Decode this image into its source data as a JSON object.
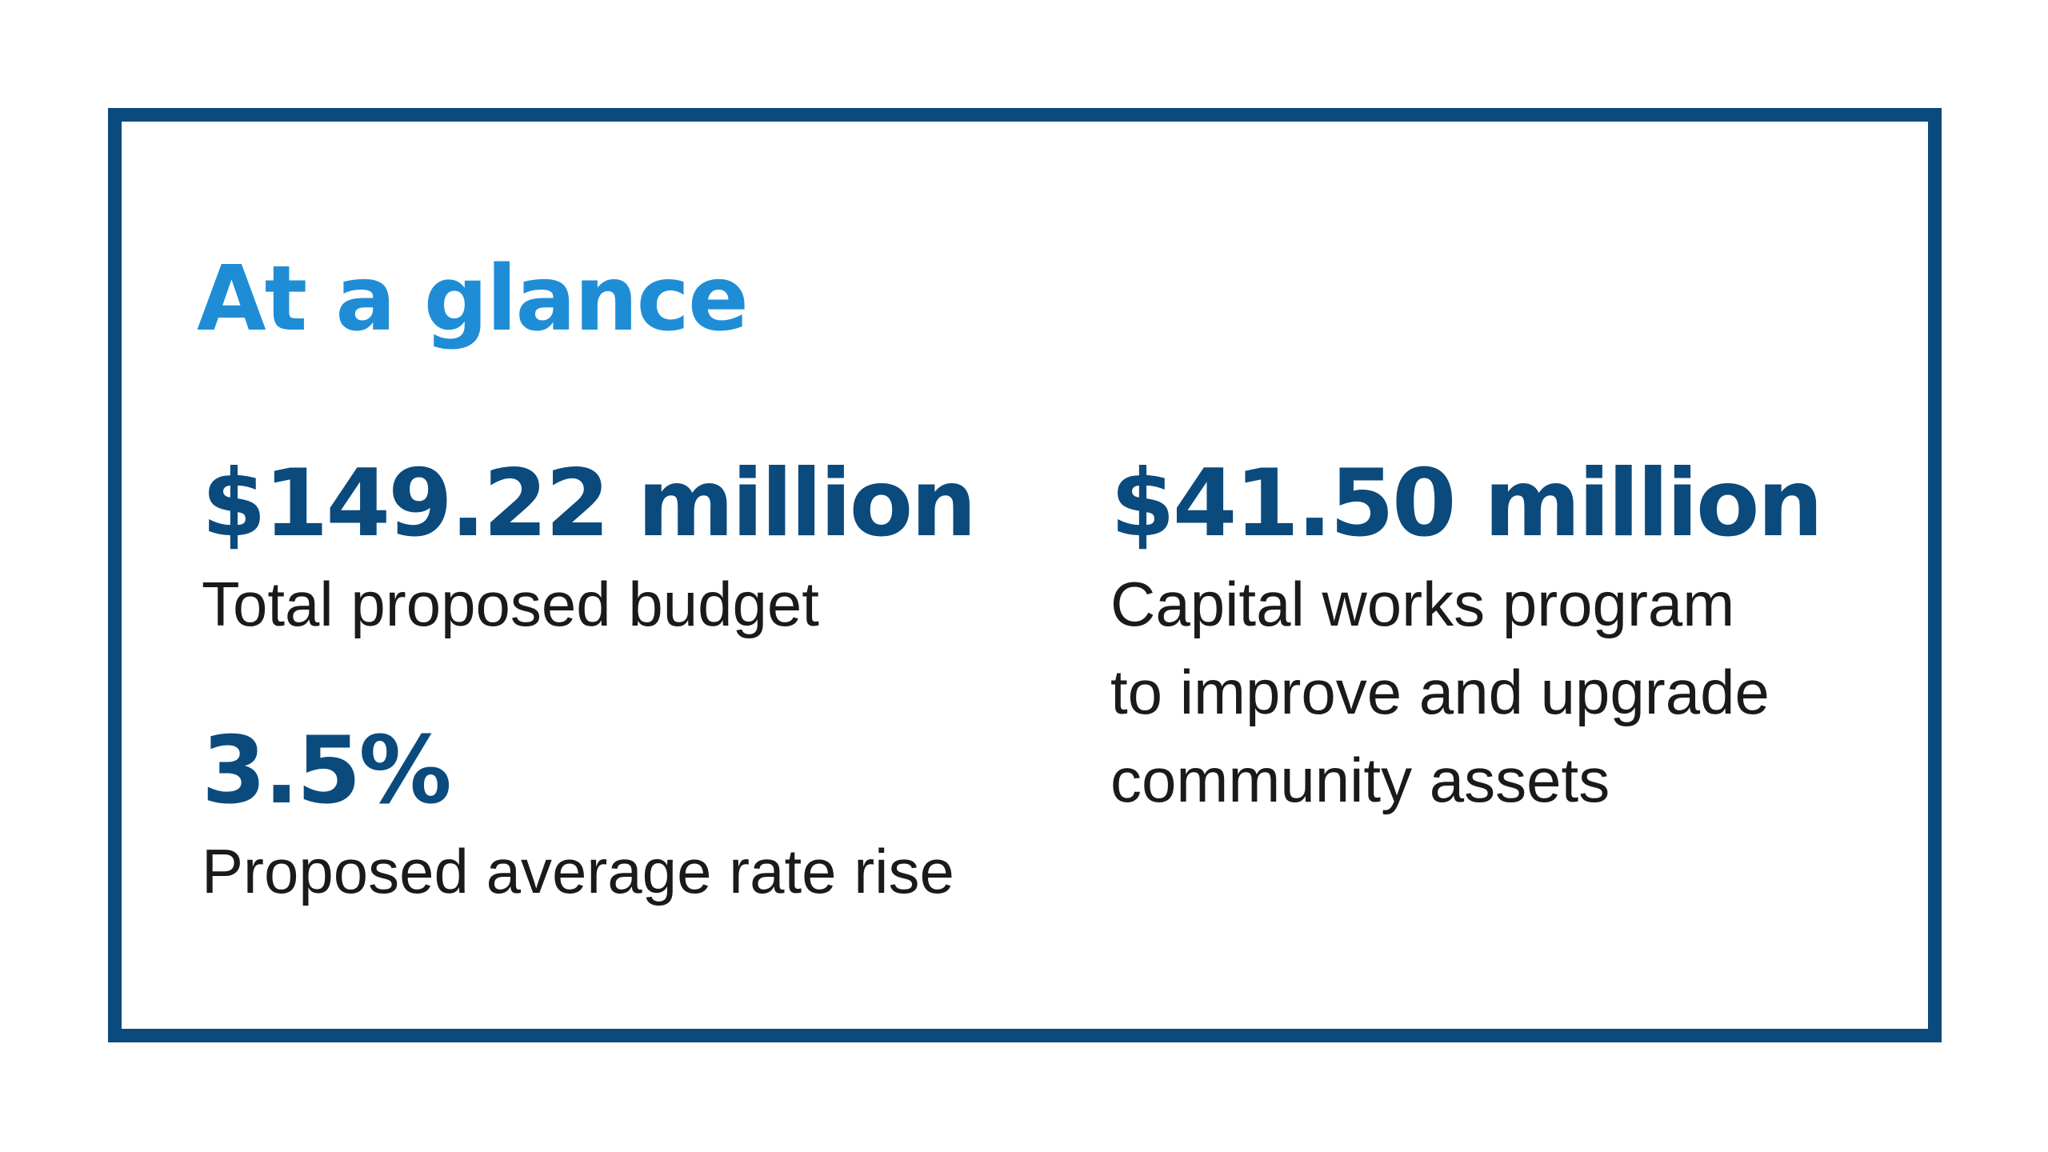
{
  "heading": "At a glance",
  "stats": [
    {
      "value": "$149.22 million",
      "label": "Total proposed budget"
    },
    {
      "value": "3.5%",
      "label": "Proposed average rate rise"
    },
    {
      "value": "$41.50 million",
      "label_lines": [
        "Capital works program",
        "to improve and upgrade",
        "community assets"
      ]
    }
  ],
  "colors": {
    "border": "#0b4a7d",
    "heading": "#1f8dd6",
    "value": "#0b4a7d",
    "label": "#1a1a1a",
    "background": "#ffffff"
  }
}
